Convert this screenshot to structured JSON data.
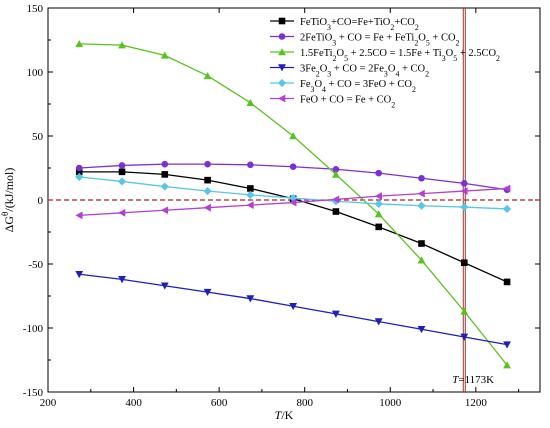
{
  "chart_data": {
    "type": "line",
    "title": "",
    "xlabel": "T/K",
    "ylabel": "ΔG°/(kJ/mol)",
    "xlim": [
      200,
      1350
    ],
    "ylim": [
      -150,
      150
    ],
    "x_ticks": [
      200,
      400,
      600,
      800,
      1000,
      1200
    ],
    "y_ticks": [
      -150,
      -100,
      -50,
      0,
      50,
      100,
      150
    ],
    "grid": false,
    "legend_position": "top-right",
    "reference_line": {
      "y": 0,
      "color": "#b22222",
      "style": "dashed"
    },
    "vertical_line": {
      "x": 1173,
      "label": "T=1173K",
      "color": "#a0342a"
    },
    "series": [
      {
        "name": "FeTiO3+CO=Fe+TiO2+CO2",
        "color": "#000000",
        "marker": "square",
        "x": [
          273,
          373,
          473,
          573,
          673,
          773,
          873,
          973,
          1073,
          1173,
          1273
        ],
        "y": [
          22,
          22,
          20,
          15.5,
          9,
          1,
          -9,
          -21,
          -34,
          -49,
          -64
        ]
      },
      {
        "name": "2FeTiO3 + CO = Fe + FeTi2O5 + CO2",
        "color": "#7b2fd8",
        "marker": "circle",
        "x": [
          273,
          373,
          473,
          573,
          673,
          773,
          873,
          973,
          1073,
          1173,
          1273
        ],
        "y": [
          25,
          27,
          28,
          28,
          27.5,
          26,
          24,
          21,
          17,
          13,
          8
        ]
      },
      {
        "name": "1.5FeTi2O5 + 2.5CO = 1.5Fe + Ti3O5 + 2.5CO2",
        "color": "#5ac21f",
        "marker": "triangle-up",
        "x": [
          273,
          373,
          473,
          573,
          673,
          773,
          873,
          973,
          1073,
          1173,
          1273
        ],
        "y": [
          122,
          121,
          113,
          97,
          76,
          50,
          20,
          -11,
          -47,
          -87,
          -129
        ]
      },
      {
        "name": "3Fe2O3 + CO = 2Fe3O4 + CO2",
        "color": "#1f1fc0",
        "marker": "triangle-down",
        "x": [
          273,
          373,
          473,
          573,
          673,
          773,
          873,
          973,
          1073,
          1173,
          1273
        ],
        "y": [
          -58,
          -62,
          -67,
          -72,
          -77,
          -83,
          -89,
          -95,
          -101,
          -107,
          -113
        ]
      },
      {
        "name": "Fe3O4 + CO = 3FeO + CO2",
        "color": "#55c8e8",
        "marker": "diamond",
        "x": [
          273,
          373,
          473,
          573,
          673,
          773,
          873,
          973,
          1073,
          1173,
          1273
        ],
        "y": [
          18,
          14.5,
          10.5,
          7,
          4,
          1.5,
          -1,
          -3,
          -4.5,
          -5.5,
          -7
        ]
      },
      {
        "name": "FeO + CO = Fe + CO2",
        "color": "#b23fd6",
        "marker": "triangle-left",
        "x": [
          273,
          373,
          473,
          573,
          673,
          773,
          873,
          973,
          1073,
          1173,
          1273
        ],
        "y": [
          -12,
          -10,
          -8,
          -6,
          -4,
          -2,
          0.5,
          3,
          5,
          7,
          9
        ]
      }
    ]
  },
  "legend_display": [
    {
      "parts": [
        [
          "FeTiO",
          "n"
        ],
        [
          "3",
          "sub"
        ],
        [
          "+CO=Fe+TiO",
          "n"
        ],
        [
          "2",
          "sub"
        ],
        [
          "+CO",
          "n"
        ],
        [
          "2",
          "sub"
        ]
      ]
    },
    {
      "parts": [
        [
          "2FeTiO",
          "n"
        ],
        [
          "3",
          "sub"
        ],
        [
          " + CO = Fe + FeTi",
          "n"
        ],
        [
          "2",
          "sub"
        ],
        [
          "O",
          "n"
        ],
        [
          "5",
          "sub"
        ],
        [
          " + CO",
          "n"
        ],
        [
          "2",
          "sub"
        ]
      ]
    },
    {
      "parts": [
        [
          "1.5FeTi",
          "n"
        ],
        [
          "2",
          "sub"
        ],
        [
          "O",
          "n"
        ],
        [
          "5",
          "sub"
        ],
        [
          " + 2.5CO = 1.5Fe + Ti",
          "n"
        ],
        [
          "3",
          "sub"
        ],
        [
          "O",
          "n"
        ],
        [
          "5",
          "sub"
        ],
        [
          " + 2.5CO",
          "n"
        ],
        [
          "2",
          "sub"
        ]
      ]
    },
    {
      "parts": [
        [
          "3Fe",
          "n"
        ],
        [
          "2",
          "sub"
        ],
        [
          "O",
          "n"
        ],
        [
          "3",
          "sub"
        ],
        [
          " + CO = 2Fe",
          "n"
        ],
        [
          "3",
          "sub"
        ],
        [
          "O",
          "n"
        ],
        [
          "4",
          "sub"
        ],
        [
          " + CO",
          "n"
        ],
        [
          "2",
          "sub"
        ]
      ]
    },
    {
      "parts": [
        [
          "Fe",
          "n"
        ],
        [
          "3",
          "sub"
        ],
        [
          "O",
          "n"
        ],
        [
          "4",
          "sub"
        ],
        [
          " + CO = 3FeO + CO",
          "n"
        ],
        [
          "2",
          "sub"
        ]
      ]
    },
    {
      "parts": [
        [
          "FeO + CO = Fe + CO",
          "n"
        ],
        [
          "2",
          "sub"
        ]
      ]
    }
  ],
  "ylabel_display": [
    [
      "ΔG",
      "n"
    ],
    [
      "θ",
      "sup"
    ],
    [
      "/(kJ/mol)",
      "n"
    ]
  ],
  "xlabel_display": [
    [
      "T",
      "i"
    ],
    [
      "/K",
      "n"
    ]
  ],
  "annotation_display": [
    [
      "T",
      "i"
    ],
    [
      "=1173K",
      "n"
    ]
  ]
}
